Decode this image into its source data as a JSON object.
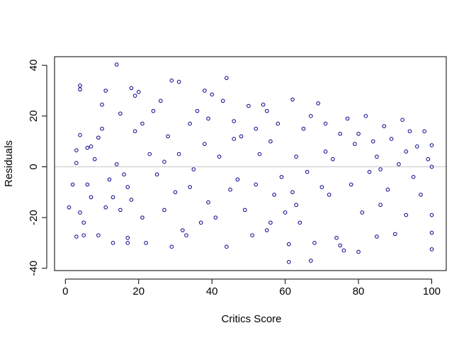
{
  "chart_data": {
    "type": "scatter",
    "x_label": "Critics Score",
    "y_label": "Residuals",
    "color": "#00008b",
    "reference_line": 0,
    "reference_color": "#c8c8c8",
    "xlim": [
      -2.96,
      103.96
    ],
    "ylim": [
      -40.9,
      43.4
    ],
    "xticks": [
      0,
      20,
      40,
      60,
      80,
      100
    ],
    "yticks": [
      -40,
      -20,
      0,
      20,
      40
    ],
    "x": [
      1,
      2,
      3,
      3,
      3,
      4,
      4,
      4,
      4,
      5,
      5,
      6,
      6,
      7,
      7,
      8,
      9,
      9,
      10,
      10,
      11,
      11,
      12,
      13,
      13,
      14,
      14,
      15,
      15,
      16,
      17,
      17,
      17,
      18,
      18,
      19,
      19,
      20,
      21,
      21,
      22,
      23,
      24,
      25,
      26,
      27,
      28,
      29,
      29,
      30,
      31,
      31,
      32,
      33,
      34,
      35,
      36,
      37,
      38,
      38,
      39,
      40,
      41,
      42,
      43,
      44,
      44,
      45,
      46,
      47,
      48,
      49,
      50,
      51,
      52,
      53,
      54,
      55,
      55,
      56,
      57,
      58,
      59,
      60,
      61,
      61,
      62,
      62,
      63,
      64,
      65,
      66,
      67,
      67,
      68,
      69,
      70,
      71,
      72,
      73,
      74,
      75,
      75,
      76,
      77,
      78,
      79,
      80,
      80,
      81,
      82,
      83,
      84,
      85,
      85,
      86,
      87,
      88,
      89,
      90,
      91,
      92,
      93,
      94,
      95,
      96,
      97,
      98,
      99,
      100,
      100,
      100,
      100,
      100,
      56,
      34,
      27,
      46,
      63,
      71,
      86,
      93,
      52,
      39
    ],
    "y": [
      -16,
      -7,
      -27.5,
      6.5,
      1.5,
      32,
      30.5,
      -18,
      12.5,
      -27,
      -22,
      7.5,
      -7,
      -12,
      8,
      3,
      -27,
      11.5,
      24.5,
      15,
      30,
      -16,
      -5,
      -30,
      -12,
      40.3,
      1,
      21,
      -17,
      -3,
      -30,
      -28,
      -8,
      31,
      -13,
      28,
      14,
      29.5,
      -20,
      17,
      -30,
      5,
      22,
      -3,
      26,
      -17,
      12,
      34,
      -31.5,
      -10,
      33.5,
      5,
      -25,
      -27,
      17,
      -1,
      22,
      -22,
      30,
      9,
      -14,
      28.5,
      -20,
      4,
      26,
      35,
      -31.5,
      -9,
      18,
      -5,
      12,
      -17,
      24,
      -27,
      -7,
      5,
      24.5,
      22,
      -25,
      10,
      -11,
      17,
      -4,
      -18,
      -37.5,
      -30.5,
      26.5,
      -10,
      4,
      -22,
      15,
      -2,
      -37,
      20,
      -30,
      25,
      -8,
      17,
      -11,
      3,
      -28,
      -31,
      13,
      -33,
      19,
      -7,
      9,
      -33.5,
      13,
      -18,
      20,
      -2,
      10,
      -27.5,
      4,
      -15,
      16,
      -9,
      11,
      -26.5,
      1,
      18.5,
      -19,
      14,
      -4,
      8,
      -11,
      14,
      3,
      -32.5,
      -26,
      -19,
      8.5,
      0,
      -22,
      -8,
      2,
      11,
      -15,
      6,
      -1,
      6,
      15,
      19
    ]
  }
}
